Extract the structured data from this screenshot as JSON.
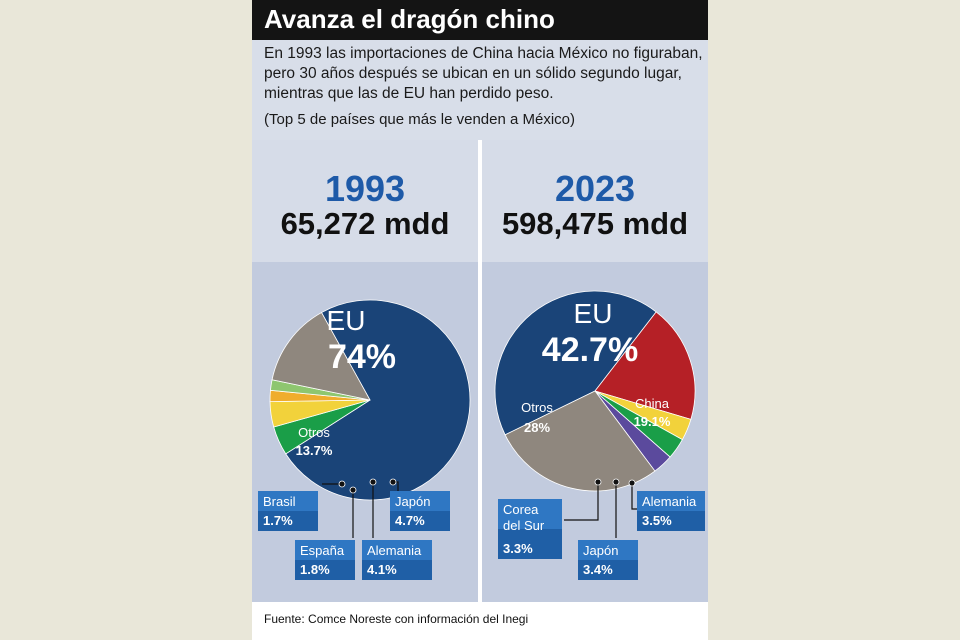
{
  "header": {
    "title": "Avanza el dragón chino",
    "subtitle": "En 1993 las importaciones de China hacia México no figuraban, pero 30 años después se ubican en un sólido segundo lugar, mientras que las de EU han perdido peso.",
    "note": "(Top 5 de países que más le venden a México)"
  },
  "footer": {
    "source": "Fuente: Comce Noreste con información del Inegi"
  },
  "colors": {
    "eu": "#1a4478",
    "otros": "#8f877e",
    "china": "#b52026",
    "japon": "#1a9e48",
    "alemania": "#f2d23b",
    "espana": "#efad2d",
    "brasil": "#8ec66f",
    "corea": "#5b4a9d",
    "callout_bg": "#2f77c3"
  },
  "chart_data": [
    {
      "type": "pie",
      "year": "1993",
      "total": "65,272 mdd",
      "slices": [
        {
          "key": "eu",
          "name": "EU",
          "value": 74,
          "label": "74%"
        },
        {
          "key": "japon",
          "name": "Japón",
          "value": 4.7,
          "label": "4.7%"
        },
        {
          "key": "alemania",
          "name": "Alemania",
          "value": 4.1,
          "label": "4.1%"
        },
        {
          "key": "espana",
          "name": "España",
          "value": 1.8,
          "label": "1.8%"
        },
        {
          "key": "brasil",
          "name": "Brasil",
          "value": 1.7,
          "label": "1.7%"
        },
        {
          "key": "otros",
          "name": "Otros",
          "value": 13.7,
          "label": "13.7%"
        }
      ]
    },
    {
      "type": "pie",
      "year": "2023",
      "total": "598,475 mdd",
      "slices": [
        {
          "key": "eu",
          "name": "EU",
          "value": 42.7,
          "label": "42.7%"
        },
        {
          "key": "china",
          "name": "China",
          "value": 19.1,
          "label": "19.1%"
        },
        {
          "key": "alemania",
          "name": "Alemania",
          "value": 3.5,
          "label": "3.5%"
        },
        {
          "key": "japon",
          "name": "Japón",
          "value": 3.4,
          "label": "3.4%"
        },
        {
          "key": "corea",
          "name": "Corea del Sur",
          "value": 3.3,
          "label": "3.3%"
        },
        {
          "key": "otros",
          "name": "Otros",
          "value": 28,
          "label": "28%"
        }
      ]
    }
  ]
}
